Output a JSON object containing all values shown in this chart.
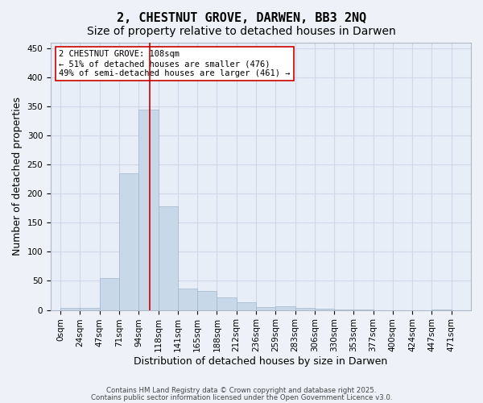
{
  "title": "2, CHESTNUT GROVE, DARWEN, BB3 2NQ",
  "subtitle": "Size of property relative to detached houses in Darwen",
  "xlabel": "Distribution of detached houses by size in Darwen",
  "ylabel": "Number of detached properties",
  "bar_labels": [
    "0sqm",
    "24sqm",
    "47sqm",
    "71sqm",
    "94sqm",
    "118sqm",
    "141sqm",
    "165sqm",
    "188sqm",
    "212sqm",
    "236sqm",
    "259sqm",
    "283sqm",
    "306sqm",
    "330sqm",
    "353sqm",
    "377sqm",
    "400sqm",
    "424sqm",
    "447sqm",
    "471sqm"
  ],
  "bar_values": [
    3,
    4,
    55,
    235,
    345,
    178,
    37,
    33,
    22,
    13,
    5,
    6,
    3,
    2,
    1,
    1,
    0,
    0,
    0,
    1,
    0
  ],
  "bar_color": "#c8d8e8",
  "bar_edgecolor": "#a0b8cc",
  "vline_x": 4.583,
  "vline_color": "#cc0000",
  "annotation_text": "2 CHESTNUT GROVE: 108sqm\n← 51% of detached houses are smaller (476)\n49% of semi-detached houses are larger (461) →",
  "annotation_box_facecolor": "#ffffff",
  "annotation_box_edgecolor": "#cc0000",
  "ylim": [
    0,
    460
  ],
  "yticks": [
    0,
    50,
    100,
    150,
    200,
    250,
    300,
    350,
    400,
    450
  ],
  "grid_color": "#d0d8e8",
  "ax_facecolor": "#e8eef8",
  "fig_facecolor": "#eef2f8",
  "footer_line1": "Contains HM Land Registry data © Crown copyright and database right 2025.",
  "footer_line2": "Contains public sector information licensed under the Open Government Licence v3.0.",
  "title_fontsize": 11,
  "subtitle_fontsize": 10,
  "tick_fontsize": 7.5,
  "ylabel_fontsize": 9,
  "xlabel_fontsize": 9,
  "annotation_fontsize": 7.5
}
